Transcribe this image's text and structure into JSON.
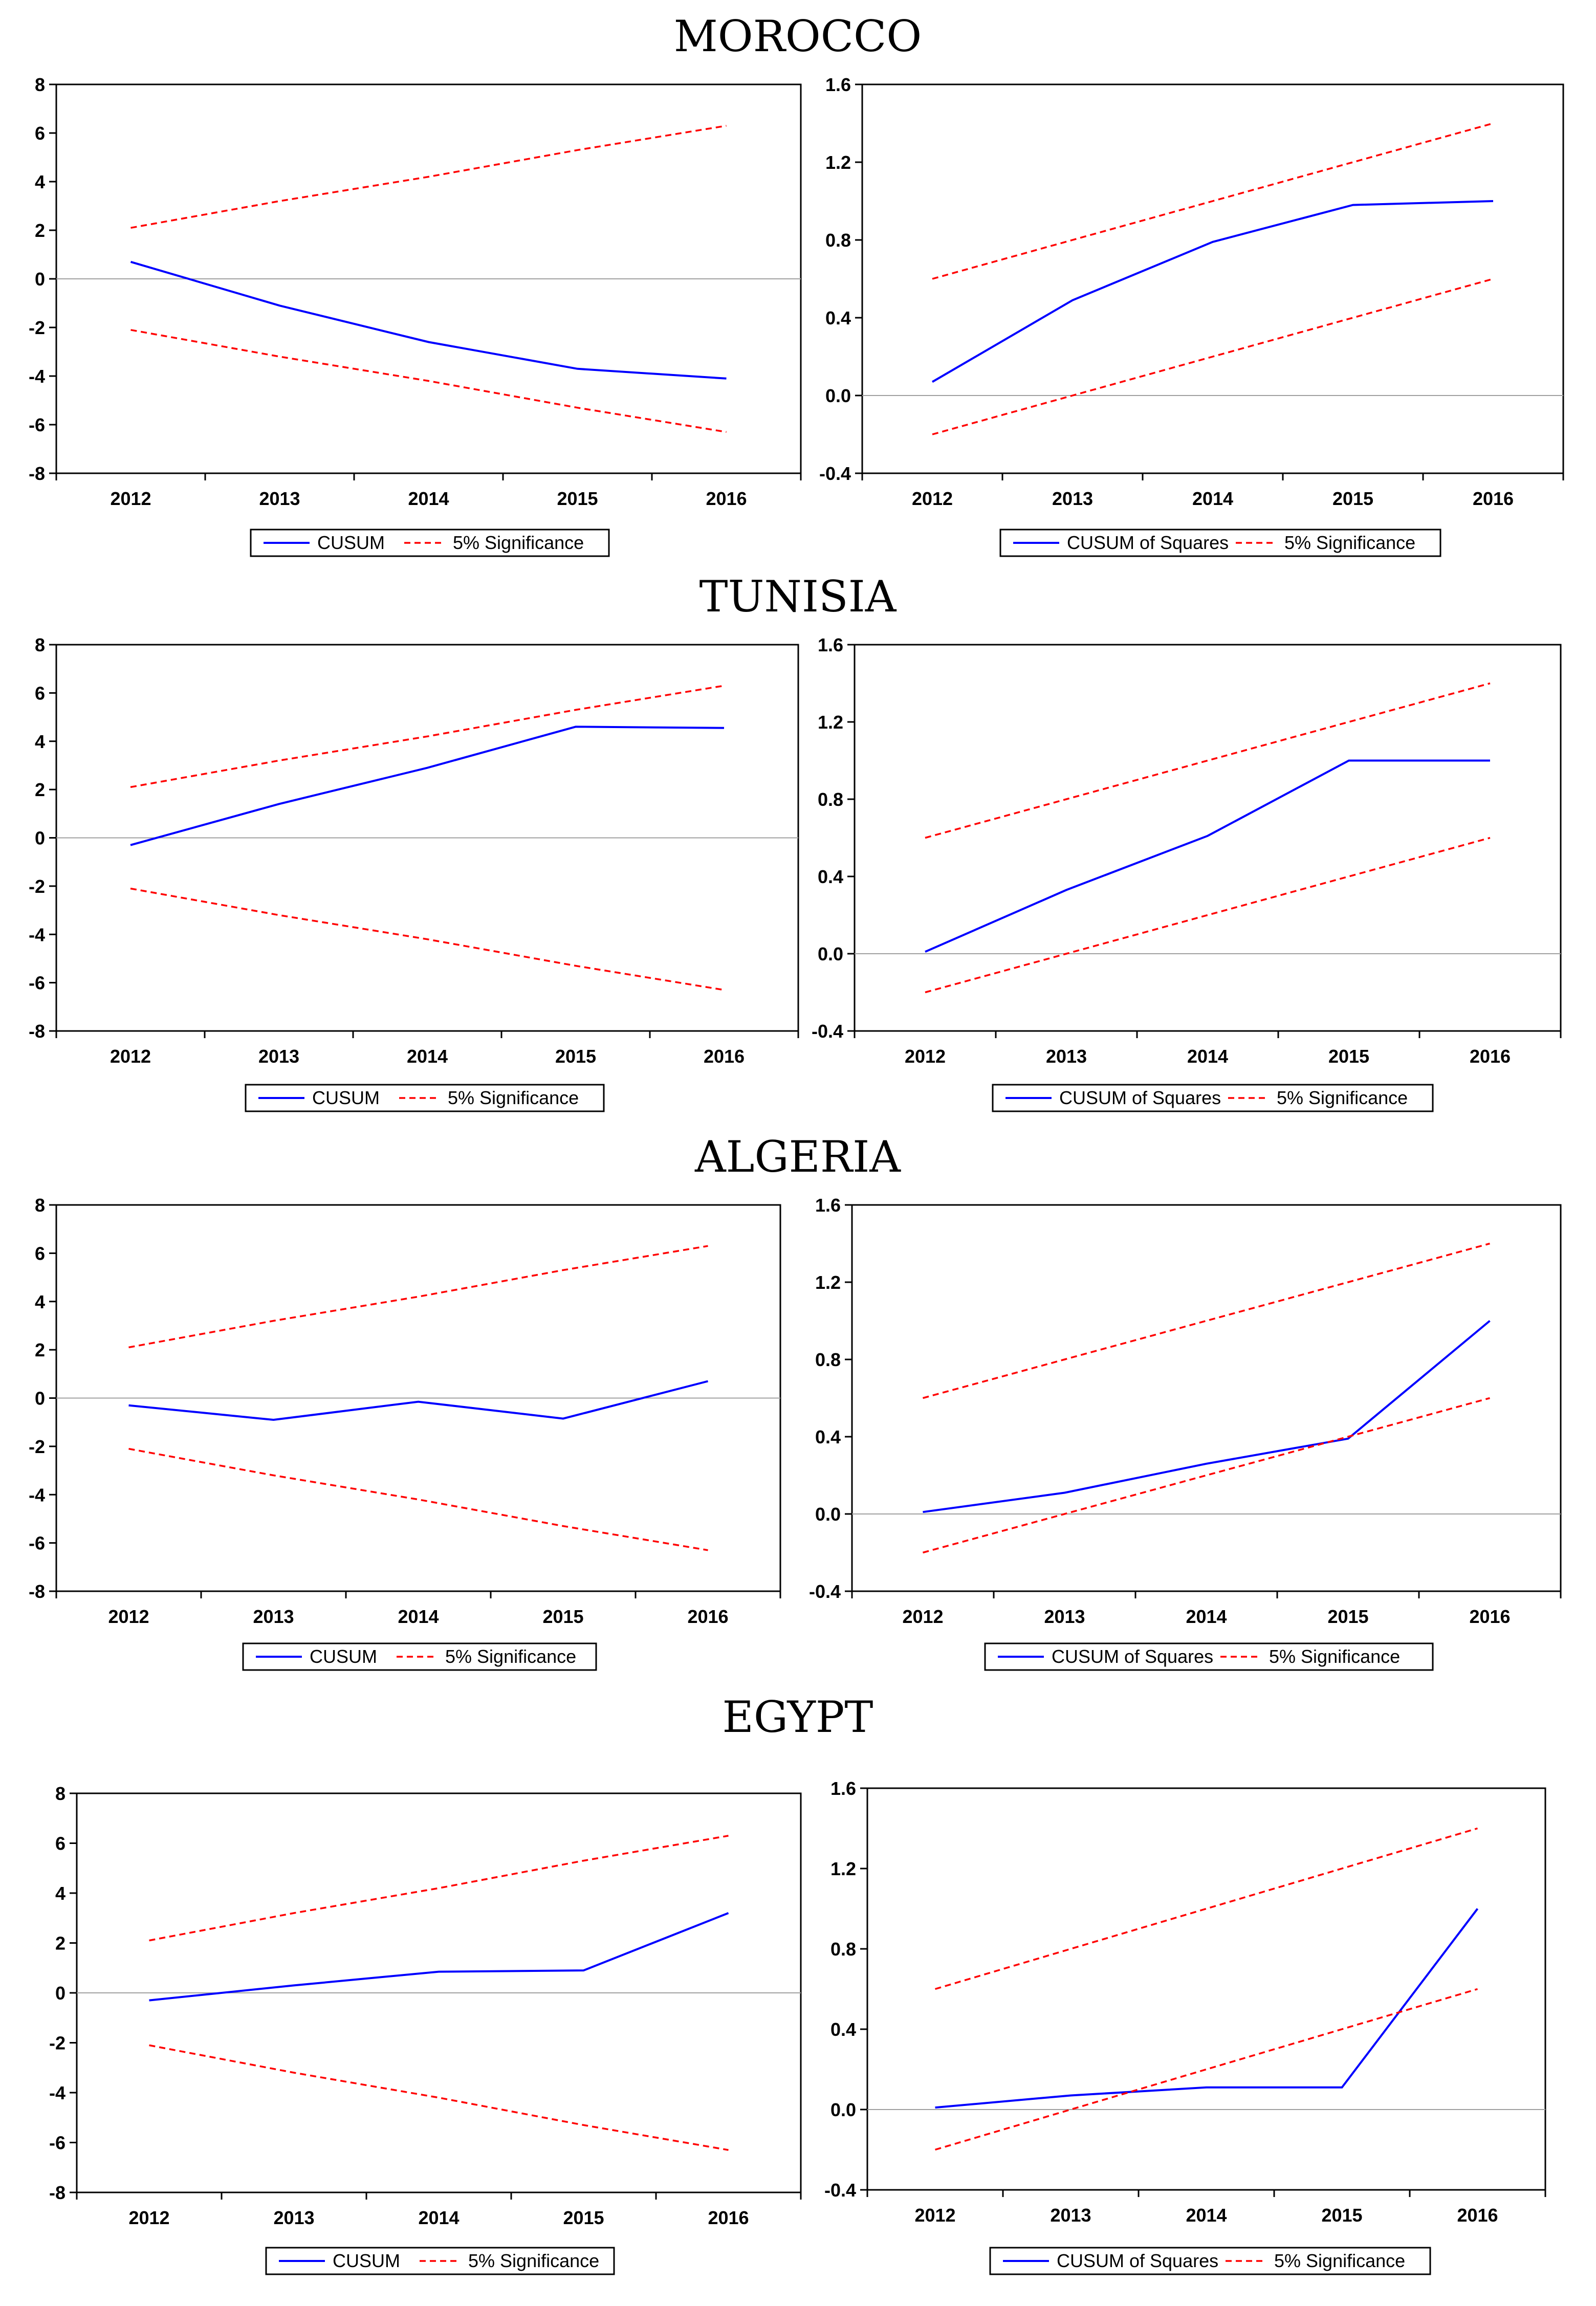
{
  "figure": {
    "titles": [
      "MOROCCO",
      "TUNISIA",
      "ALGERIA",
      "EGYPT"
    ]
  },
  "colors": {
    "cusum_line": "#0000ff",
    "significance_line": "#ff0000",
    "zero_line": "#a0a0a0",
    "frame": "#000000"
  },
  "chart_data": [
    {
      "id": "morocco-cusum",
      "country": "MOROCCO",
      "type": "line",
      "categories": [
        "2012",
        "2013",
        "2014",
        "2015",
        "2016"
      ],
      "ylim": [
        -8,
        8
      ],
      "yticks": [
        8,
        6,
        4,
        2,
        0,
        -2,
        -4,
        -6,
        -8
      ],
      "ytick_labels": [
        "8",
        "6",
        "4",
        "2",
        "0",
        "-2",
        "-4",
        "-6",
        "-8"
      ],
      "series": [
        {
          "name": "CUSUM",
          "values": [
            0.7,
            -1.1,
            -2.6,
            -3.7,
            -4.1
          ]
        },
        {
          "name": "5% Significance",
          "role": "upper",
          "values": [
            2.1,
            3.2,
            4.2,
            5.3,
            6.3
          ]
        },
        {
          "name": "5% Significance",
          "role": "lower",
          "values": [
            -2.1,
            -3.2,
            -4.2,
            -5.3,
            -6.3
          ]
        }
      ],
      "legend": [
        "CUSUM",
        "5% Significance"
      ]
    },
    {
      "id": "morocco-cusumsq",
      "country": "MOROCCO",
      "type": "line",
      "categories": [
        "2012",
        "2013",
        "2014",
        "2015",
        "2016"
      ],
      "ylim": [
        -0.4,
        1.6
      ],
      "yticks": [
        1.6,
        1.2,
        0.8,
        0.4,
        0.0,
        -0.4
      ],
      "ytick_labels": [
        "1.6",
        "1.2",
        "0.8",
        "0.4",
        "0.0",
        "-0.4"
      ],
      "series": [
        {
          "name": "CUSUM of Squares",
          "values": [
            0.07,
            0.49,
            0.79,
            0.98,
            1.0
          ]
        },
        {
          "name": "5% Significance",
          "role": "upper",
          "values": [
            0.6,
            0.8,
            1.0,
            1.2,
            1.4
          ]
        },
        {
          "name": "5% Significance",
          "role": "lower",
          "values": [
            -0.2,
            0.0,
            0.2,
            0.4,
            0.6
          ]
        }
      ],
      "legend": [
        "CUSUM of Squares",
        "5% Significance"
      ]
    },
    {
      "id": "tunisia-cusum",
      "country": "TUNISIA",
      "type": "line",
      "categories": [
        "2012",
        "2013",
        "2014",
        "2015",
        "2016"
      ],
      "ylim": [
        -8,
        8
      ],
      "yticks": [
        8,
        6,
        4,
        2,
        0,
        -2,
        -4,
        -6,
        -8
      ],
      "ytick_labels": [
        "8",
        "6",
        "4",
        "2",
        "0",
        "-2",
        "-4",
        "-6",
        "-8"
      ],
      "series": [
        {
          "name": "CUSUM",
          "values": [
            -0.3,
            1.4,
            2.9,
            4.6,
            4.55
          ]
        },
        {
          "name": "5% Significance",
          "role": "upper",
          "values": [
            2.1,
            3.2,
            4.2,
            5.3,
            6.3
          ]
        },
        {
          "name": "5% Significance",
          "role": "lower",
          "values": [
            -2.1,
            -3.2,
            -4.2,
            -5.3,
            -6.3
          ]
        }
      ],
      "legend": [
        "CUSUM",
        "5% Significance"
      ]
    },
    {
      "id": "tunisia-cusumsq",
      "country": "TUNISIA",
      "type": "line",
      "categories": [
        "2012",
        "2013",
        "2014",
        "2015",
        "2016"
      ],
      "ylim": [
        -0.4,
        1.6
      ],
      "yticks": [
        1.6,
        1.2,
        0.8,
        0.4,
        0.0,
        -0.4
      ],
      "ytick_labels": [
        "1.6",
        "1.2",
        "0.8",
        "0.4",
        "0.0",
        "-0.4"
      ],
      "series": [
        {
          "name": "CUSUM of Squares",
          "values": [
            0.01,
            0.33,
            0.61,
            1.0,
            1.0
          ]
        },
        {
          "name": "5% Significance",
          "role": "upper",
          "values": [
            0.6,
            0.8,
            1.0,
            1.2,
            1.4
          ]
        },
        {
          "name": "5% Significance",
          "role": "lower",
          "values": [
            -0.2,
            0.0,
            0.2,
            0.4,
            0.6
          ]
        }
      ],
      "legend": [
        "CUSUM of Squares",
        "5% Significance"
      ]
    },
    {
      "id": "algeria-cusum",
      "country": "ALGERIA",
      "type": "line",
      "categories": [
        "2012",
        "2013",
        "2014",
        "2015",
        "2016"
      ],
      "ylim": [
        -8,
        8
      ],
      "yticks": [
        8,
        6,
        4,
        2,
        0,
        -2,
        -4,
        -6,
        -8
      ],
      "ytick_labels": [
        "8",
        "6",
        "4",
        "2",
        "0",
        "-2",
        "-4",
        "-6",
        "-8"
      ],
      "series": [
        {
          "name": "CUSUM",
          "values": [
            -0.3,
            -0.9,
            -0.15,
            -0.85,
            0.7
          ]
        },
        {
          "name": "5% Significance",
          "role": "upper",
          "values": [
            2.1,
            3.2,
            4.2,
            5.3,
            6.3
          ]
        },
        {
          "name": "5% Significance",
          "role": "lower",
          "values": [
            -2.1,
            -3.2,
            -4.2,
            -5.3,
            -6.3
          ]
        }
      ],
      "legend": [
        "CUSUM",
        "5% Significance"
      ]
    },
    {
      "id": "algeria-cusumsq",
      "country": "ALGERIA",
      "type": "line",
      "categories": [
        "2012",
        "2013",
        "2014",
        "2015",
        "2016"
      ],
      "ylim": [
        -0.4,
        1.6
      ],
      "yticks": [
        1.6,
        1.2,
        0.8,
        0.4,
        0.0,
        -0.4
      ],
      "ytick_labels": [
        "1.6",
        "1.2",
        "0.8",
        "0.4",
        "0.0",
        "-0.4"
      ],
      "series": [
        {
          "name": "CUSUM of Squares",
          "values": [
            0.01,
            0.11,
            0.26,
            0.39,
            1.0
          ]
        },
        {
          "name": "5% Significance",
          "role": "upper",
          "values": [
            0.6,
            0.8,
            1.0,
            1.2,
            1.4
          ]
        },
        {
          "name": "5% Significance",
          "role": "lower",
          "values": [
            -0.2,
            0.0,
            0.2,
            0.4,
            0.6
          ]
        }
      ],
      "legend": [
        "CUSUM of Squares",
        "5% Significance"
      ]
    },
    {
      "id": "egypt-cusum",
      "country": "EGYPT",
      "type": "line",
      "categories": [
        "2012",
        "2013",
        "2014",
        "2015",
        "2016"
      ],
      "ylim": [
        -8,
        8
      ],
      "yticks": [
        8,
        6,
        4,
        2,
        0,
        -2,
        -4,
        -6,
        -8
      ],
      "ytick_labels": [
        "8",
        "6",
        "4",
        "2",
        "0",
        "-2",
        "-4",
        "-6",
        "-8"
      ],
      "series": [
        {
          "name": "CUSUM",
          "values": [
            -0.3,
            0.3,
            0.85,
            0.9,
            3.2
          ]
        },
        {
          "name": "5% Significance",
          "role": "upper",
          "values": [
            2.1,
            3.2,
            4.2,
            5.3,
            6.3
          ]
        },
        {
          "name": "5% Significance",
          "role": "lower",
          "values": [
            -2.1,
            -3.2,
            -4.2,
            -5.3,
            -6.3
          ]
        }
      ],
      "legend": [
        "CUSUM",
        "5% Significance"
      ]
    },
    {
      "id": "egypt-cusumsq",
      "country": "EGYPT",
      "type": "line",
      "categories": [
        "2012",
        "2013",
        "2014",
        "2015",
        "2016"
      ],
      "ylim": [
        -0.4,
        1.6
      ],
      "yticks": [
        1.6,
        1.2,
        0.8,
        0.4,
        0.0,
        -0.4
      ],
      "ytick_labels": [
        "1.6",
        "1.2",
        "0.8",
        "0.4",
        "0.0",
        "-0.4"
      ],
      "series": [
        {
          "name": "CUSUM of Squares",
          "values": [
            0.01,
            0.07,
            0.11,
            0.11,
            1.0
          ]
        },
        {
          "name": "5% Significance",
          "role": "upper",
          "values": [
            0.6,
            0.8,
            1.0,
            1.2,
            1.4
          ]
        },
        {
          "name": "5% Significance",
          "role": "lower",
          "values": [
            -0.2,
            0.0,
            0.2,
            0.4,
            0.6
          ]
        }
      ],
      "legend": [
        "CUSUM of Squares",
        "5% Significance"
      ]
    }
  ]
}
